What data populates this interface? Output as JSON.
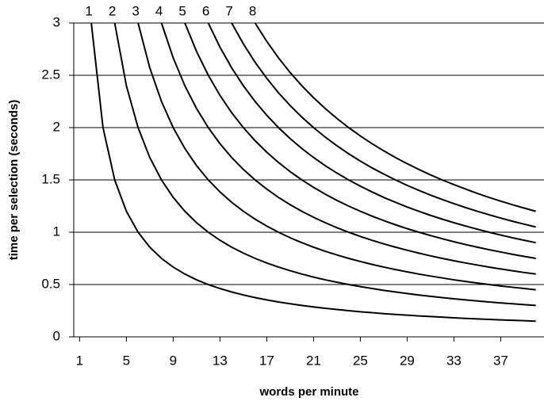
{
  "chart_data": {
    "type": "line",
    "xlabel": "words per minute",
    "ylabel": "time per selection (seconds)",
    "x": [
      1,
      2,
      3,
      4,
      5,
      6,
      7,
      8,
      9,
      10,
      11,
      12,
      13,
      14,
      15,
      16,
      17,
      18,
      19,
      20,
      21,
      22,
      23,
      24,
      25,
      26,
      27,
      28,
      29,
      30,
      31,
      32,
      33,
      34,
      35,
      36,
      37,
      38,
      39,
      40
    ],
    "xlim": [
      0.5,
      40.7
    ],
    "xticks": [
      1,
      5,
      9,
      13,
      17,
      21,
      25,
      29,
      33,
      37
    ],
    "ylim": [
      0,
      3
    ],
    "yticks": [
      0,
      0.5,
      1,
      1.5,
      2,
      2.5,
      3
    ],
    "grid": true,
    "series": [
      {
        "name": "1",
        "color": "#000000",
        "values": [
          null,
          3,
          2,
          1.5,
          1.2,
          1,
          0.857,
          0.75,
          0.667,
          0.6,
          0.545,
          0.5,
          0.462,
          0.429,
          0.4,
          0.375,
          0.353,
          0.333,
          0.316,
          0.3,
          0.286,
          0.273,
          0.261,
          0.25,
          0.24,
          0.231,
          0.222,
          0.214,
          0.207,
          0.2,
          0.194,
          0.188,
          0.182,
          0.176,
          0.171,
          0.167,
          0.162,
          0.158,
          0.154,
          0.15
        ]
      },
      {
        "name": "2",
        "color": "#000000",
        "values": [
          null,
          null,
          null,
          3,
          2.4,
          2,
          1.714,
          1.5,
          1.333,
          1.2,
          1.091,
          1,
          0.923,
          0.857,
          0.8,
          0.75,
          0.706,
          0.667,
          0.632,
          0.6,
          0.571,
          0.545,
          0.522,
          0.5,
          0.48,
          0.462,
          0.444,
          0.429,
          0.414,
          0.4,
          0.387,
          0.375,
          0.364,
          0.353,
          0.343,
          0.333,
          0.324,
          0.316,
          0.308,
          0.3
        ]
      },
      {
        "name": "3",
        "color": "#000000",
        "values": [
          null,
          null,
          null,
          null,
          null,
          3,
          2.571,
          2.25,
          2,
          1.8,
          1.636,
          1.5,
          1.385,
          1.286,
          1.2,
          1.125,
          1.059,
          1,
          0.947,
          0.9,
          0.857,
          0.818,
          0.783,
          0.75,
          0.72,
          0.692,
          0.667,
          0.643,
          0.621,
          0.6,
          0.581,
          0.563,
          0.545,
          0.529,
          0.514,
          0.5,
          0.486,
          0.474,
          0.462,
          0.45
        ]
      },
      {
        "name": "4",
        "color": "#000000",
        "values": [
          null,
          null,
          null,
          null,
          null,
          null,
          null,
          3,
          2.667,
          2.4,
          2.182,
          2,
          1.846,
          1.714,
          1.6,
          1.5,
          1.412,
          1.333,
          1.263,
          1.2,
          1.143,
          1.091,
          1.043,
          1,
          0.96,
          0.923,
          0.889,
          0.857,
          0.828,
          0.8,
          0.774,
          0.75,
          0.727,
          0.706,
          0.686,
          0.667,
          0.649,
          0.632,
          0.615,
          0.6
        ]
      },
      {
        "name": "5",
        "color": "#000000",
        "values": [
          null,
          null,
          null,
          null,
          null,
          null,
          null,
          null,
          null,
          3,
          2.727,
          2.5,
          2.308,
          2.143,
          2,
          1.875,
          1.765,
          1.667,
          1.579,
          1.5,
          1.429,
          1.364,
          1.304,
          1.25,
          1.2,
          1.154,
          1.111,
          1.071,
          1.034,
          1,
          0.968,
          0.938,
          0.909,
          0.882,
          0.857,
          0.833,
          0.811,
          0.789,
          0.769,
          0.75
        ]
      },
      {
        "name": "6",
        "color": "#000000",
        "values": [
          null,
          null,
          null,
          null,
          null,
          null,
          null,
          null,
          null,
          null,
          null,
          3,
          2.769,
          2.571,
          2.4,
          2.25,
          2.118,
          2,
          1.895,
          1.8,
          1.714,
          1.636,
          1.565,
          1.5,
          1.44,
          1.385,
          1.333,
          1.286,
          1.241,
          1.2,
          1.161,
          1.125,
          1.091,
          1.059,
          1.029,
          1,
          0.973,
          0.947,
          0.923,
          0.9
        ]
      },
      {
        "name": "7",
        "color": "#000000",
        "values": [
          null,
          null,
          null,
          null,
          null,
          null,
          null,
          null,
          null,
          null,
          null,
          null,
          null,
          3,
          2.8,
          2.625,
          2.471,
          2.333,
          2.211,
          2.1,
          2,
          1.909,
          1.826,
          1.75,
          1.68,
          1.615,
          1.556,
          1.5,
          1.448,
          1.4,
          1.355,
          1.313,
          1.273,
          1.235,
          1.2,
          1.167,
          1.135,
          1.105,
          1.077,
          1.05
        ]
      },
      {
        "name": "8",
        "color": "#000000",
        "values": [
          null,
          null,
          null,
          null,
          null,
          null,
          null,
          null,
          null,
          null,
          null,
          null,
          null,
          null,
          null,
          3,
          2.824,
          2.667,
          2.526,
          2.4,
          2.286,
          2.182,
          2.087,
          2,
          1.92,
          1.846,
          1.778,
          1.714,
          1.655,
          1.6,
          1.548,
          1.5,
          1.455,
          1.412,
          1.371,
          1.333,
          1.297,
          1.263,
          1.231,
          1.2
        ]
      }
    ]
  }
}
